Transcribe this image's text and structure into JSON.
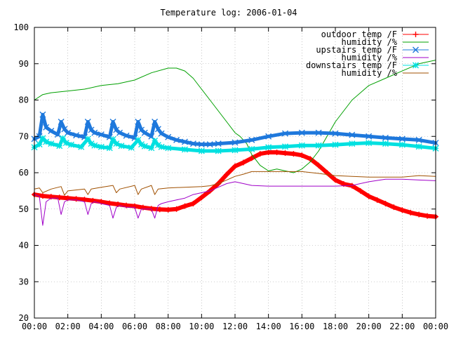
{
  "chart_data": {
    "type": "line",
    "title": "Temperature log: 2006-01-04",
    "xlabel": "",
    "ylabel": "",
    "x_unit": "hours",
    "xlim": [
      0,
      24
    ],
    "ylim": [
      20,
      100
    ],
    "x_ticks": [
      {
        "value": 0,
        "label": "00:00"
      },
      {
        "value": 2,
        "label": "02:00"
      },
      {
        "value": 4,
        "label": "04:00"
      },
      {
        "value": 6,
        "label": "06:00"
      },
      {
        "value": 8,
        "label": "08:00"
      },
      {
        "value": 10,
        "label": "10:00"
      },
      {
        "value": 12,
        "label": "12:00"
      },
      {
        "value": 14,
        "label": "14:00"
      },
      {
        "value": 16,
        "label": "16:00"
      },
      {
        "value": 18,
        "label": "18:00"
      },
      {
        "value": 20,
        "label": "20:00"
      },
      {
        "value": 22,
        "label": "22:00"
      },
      {
        "value": 24,
        "label": "00:00"
      }
    ],
    "y_ticks": [
      {
        "value": 20,
        "label": "20"
      },
      {
        "value": 30,
        "label": "30"
      },
      {
        "value": 40,
        "label": "40"
      },
      {
        "value": 50,
        "label": "50"
      },
      {
        "value": 60,
        "label": "60"
      },
      {
        "value": 70,
        "label": "70"
      },
      {
        "value": 80,
        "label": "80"
      },
      {
        "value": 90,
        "label": "90"
      },
      {
        "value": 100,
        "label": "100"
      }
    ],
    "grid": true,
    "legend_position": "top-right",
    "series": [
      {
        "name": "outdoor temp /F",
        "color": "#ff0000",
        "marker": "plus",
        "x": [
          0,
          0.5,
          1,
          1.5,
          2,
          2.5,
          3,
          3.5,
          4,
          4.5,
          5,
          5.5,
          6,
          6.5,
          7,
          7.5,
          8,
          8.5,
          9,
          9.5,
          10,
          10.5,
          11,
          11.5,
          12,
          12.5,
          13,
          13.5,
          14,
          14.5,
          15,
          15.5,
          16,
          16.5,
          17,
          17.5,
          18,
          18.5,
          19,
          19.5,
          20,
          20.5,
          21,
          21.5,
          22,
          22.5,
          23,
          23.5,
          24
        ],
        "y": [
          54,
          53.6,
          53.4,
          53.2,
          53,
          52.8,
          52.6,
          52.3,
          52,
          51.6,
          51.3,
          51,
          50.8,
          50.4,
          50.1,
          49.9,
          49.8,
          50,
          50.8,
          51.5,
          53.2,
          55,
          57,
          59.5,
          61.8,
          62.8,
          64,
          65.2,
          65.6,
          65.6,
          65.4,
          65.2,
          64.8,
          63.8,
          62,
          60,
          58,
          56.9,
          56.4,
          55,
          53.5,
          52.5,
          51.5,
          50.5,
          49.7,
          49,
          48.5,
          48.1,
          47.9
        ]
      },
      {
        "name": "humidity /%",
        "color": "#00a000",
        "marker": "none",
        "x": [
          0,
          0.5,
          1,
          2,
          3,
          4,
          5,
          6,
          7,
          8,
          8.5,
          9,
          9.5,
          10,
          10.5,
          11,
          11.5,
          12,
          12.3,
          12.7,
          13,
          13.5,
          14,
          14.5,
          15,
          15.5,
          16,
          16.5,
          17,
          17.5,
          18,
          19,
          20,
          21,
          22,
          23,
          24
        ],
        "y": [
          80,
          81.5,
          82,
          82.5,
          83,
          84,
          84.5,
          85.5,
          87.5,
          88.8,
          88.8,
          88,
          86,
          83,
          80,
          77,
          74,
          71,
          70,
          68,
          65,
          62,
          60.5,
          61,
          60.5,
          60,
          61,
          63,
          66,
          70,
          74,
          80,
          84,
          86,
          88,
          90,
          91
        ]
      },
      {
        "name": "upstairs temp /F",
        "color": "#1e78dc",
        "marker": "cross",
        "x": [
          0,
          0.3,
          0.5,
          0.7,
          1,
          1.4,
          1.6,
          1.8,
          2,
          2.5,
          3,
          3.2,
          3.4,
          3.6,
          4,
          4.5,
          4.7,
          4.9,
          5.1,
          5.5,
          6,
          6.2,
          6.4,
          6.6,
          7,
          7.2,
          7.4,
          7.6,
          8,
          8.5,
          9,
          9.5,
          10,
          10.5,
          11,
          12,
          13,
          14,
          15,
          16,
          17,
          18,
          19,
          20,
          21,
          22,
          23,
          24
        ],
        "y": [
          69.3,
          70,
          76,
          72.5,
          71.5,
          70.5,
          74,
          72,
          71,
          70.3,
          69.8,
          74,
          71.8,
          71,
          70.5,
          69.8,
          74,
          71.8,
          71,
          70.2,
          69.6,
          74,
          71.8,
          71,
          70,
          74,
          72,
          70.8,
          69.8,
          69,
          68.5,
          68,
          67.8,
          67.8,
          68,
          68.3,
          69,
          70,
          70.8,
          71,
          71,
          70.8,
          70.4,
          70,
          69.6,
          69.3,
          69,
          68.2
        ]
      },
      {
        "name": "humidity /%",
        "color": "#a000c8",
        "marker": "none",
        "x": [
          0,
          0.3,
          0.5,
          0.7,
          1,
          1.4,
          1.6,
          1.8,
          2,
          2.5,
          3,
          3.2,
          3.4,
          3.6,
          4,
          4.5,
          4.7,
          4.9,
          5.1,
          5.5,
          6,
          6.2,
          6.4,
          6.6,
          7,
          7.2,
          7.4,
          7.6,
          8,
          8.5,
          9,
          9.5,
          10,
          10.5,
          11,
          11.5,
          12,
          13,
          14,
          15,
          16,
          17,
          18,
          19,
          20,
          21,
          22,
          23,
          24
        ],
        "y": [
          54,
          53.5,
          45.5,
          52,
          53,
          53,
          48.5,
          52,
          52.5,
          52.5,
          52,
          48.5,
          51.5,
          52,
          51.5,
          51,
          47.5,
          50.5,
          51,
          50.5,
          50.5,
          47.5,
          50,
          50,
          50,
          47.5,
          51,
          51.5,
          52,
          52.5,
          53,
          54,
          54.5,
          55,
          56,
          57,
          57.5,
          56.5,
          56.3,
          56.3,
          56.3,
          56.3,
          56.3,
          56.5,
          57.5,
          58.2,
          58.2,
          58,
          57.8
        ]
      },
      {
        "name": "downstairs temp /F",
        "color": "#00e0e0",
        "marker": "star",
        "x": [
          0,
          0.3,
          0.5,
          0.7,
          1,
          1.5,
          1.7,
          1.9,
          2.2,
          2.8,
          3.2,
          3.4,
          3.6,
          4,
          4.5,
          4.7,
          4.9,
          5.2,
          5.8,
          6.2,
          6.4,
          6.6,
          7,
          7.2,
          7.4,
          7.6,
          8,
          9,
          10,
          11,
          12,
          13,
          14,
          15,
          16,
          17,
          18,
          19,
          20,
          21,
          22,
          23,
          24
        ],
        "y": [
          67,
          67.8,
          69.5,
          68.5,
          68,
          67.4,
          69.5,
          68.2,
          67.7,
          67.1,
          69.3,
          68,
          67.5,
          67.1,
          66.8,
          69.2,
          68,
          67.4,
          66.9,
          69,
          67.8,
          67.3,
          66.8,
          68.8,
          67.6,
          67.1,
          66.8,
          66.4,
          66,
          66,
          66.2,
          66.5,
          67,
          67.2,
          67.5,
          67.5,
          67.7,
          68,
          68.2,
          68,
          67.7,
          67.2,
          66.7
        ]
      },
      {
        "name": "humidity /%",
        "color": "#a05000",
        "marker": "none",
        "x": [
          0,
          0.3,
          0.5,
          1,
          1.6,
          1.8,
          2,
          3,
          3.2,
          3.4,
          4,
          4.7,
          4.9,
          5.1,
          6,
          6.2,
          6.4,
          7,
          7.2,
          7.4,
          8,
          9,
          10,
          10.5,
          11,
          11.5,
          12,
          12.5,
          13,
          14,
          15,
          16,
          17,
          18,
          19,
          20,
          21,
          22,
          23,
          24
        ],
        "y": [
          55.5,
          55.8,
          54.5,
          55.5,
          56.2,
          53.8,
          55,
          55.5,
          54,
          55.5,
          56,
          56.5,
          54.5,
          55.5,
          56.5,
          54,
          55.5,
          56.5,
          54,
          55.5,
          55.8,
          56,
          56.2,
          56.4,
          57,
          58,
          59,
          59.6,
          60.3,
          60.3,
          60.3,
          60.3,
          59.8,
          59.2,
          59,
          58.8,
          58.8,
          58.8,
          59.2,
          59
        ]
      }
    ]
  }
}
